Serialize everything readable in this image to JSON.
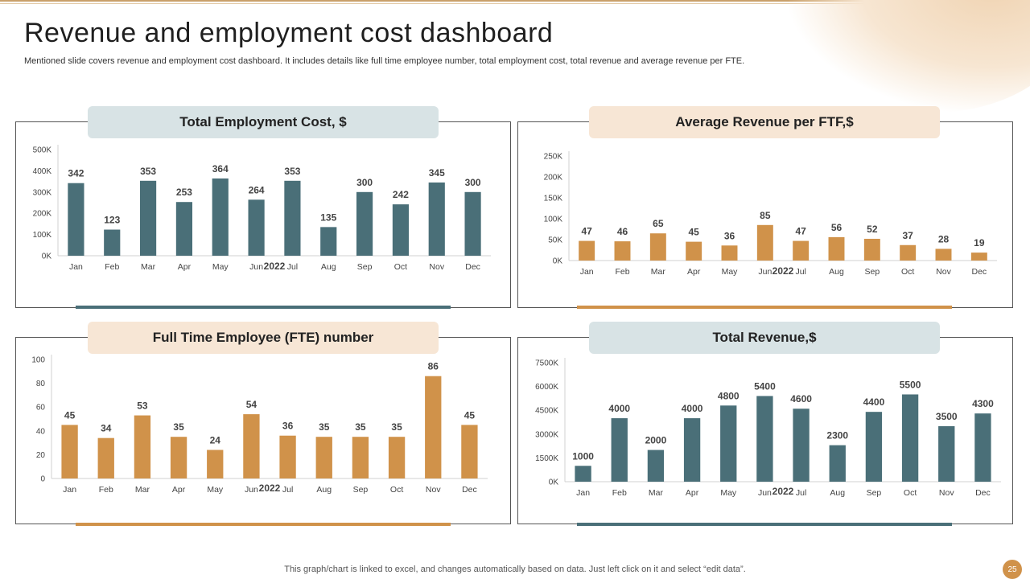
{
  "page": {
    "title": "Revenue and employment cost dashboard",
    "subtitle": "Mentioned slide covers revenue and employment cost dashboard. It includes details like full time employee number, total employment cost, total revenue and average revenue per FTE.",
    "footer": "This graph/chart is linked to excel,  and changes automatically based on data. Just left click on it and select “edit data”.",
    "page_number": "25"
  },
  "colors": {
    "teal": "#4a6f78",
    "orange": "#d0924a"
  },
  "panels": {
    "cost": {
      "header": "Total Employment  Cost, $"
    },
    "avg_revenue": {
      "header": "Average Revenue per FTF,$"
    },
    "fte": {
      "header": "Full Time Employee (FTE) number"
    },
    "revenue": {
      "header": "Total Revenue,$"
    }
  },
  "chart_data": [
    {
      "type": "bar",
      "title": "Total Employment  Cost, $",
      "xlabel": "2022",
      "categories": [
        "Jan",
        "Feb",
        "Mar",
        "Apr",
        "May",
        "Jun",
        "Jul",
        "Aug",
        "Sep",
        "Oct",
        "Nov",
        "Dec"
      ],
      "values": [
        342,
        123,
        353,
        253,
        364,
        264,
        353,
        135,
        300,
        242,
        345,
        300
      ],
      "yticks": [
        "0K",
        "100K",
        "200K",
        "300K",
        "400K",
        "500K"
      ],
      "ylim": [
        0,
        500
      ],
      "color": "#4a6f78"
    },
    {
      "type": "bar",
      "title": "Average Revenue per FTF,$",
      "xlabel": "2022",
      "categories": [
        "Jan",
        "Feb",
        "Mar",
        "Apr",
        "May",
        "Jun",
        "Jul",
        "Aug",
        "Sep",
        "Oct",
        "Nov",
        "Dec"
      ],
      "values": [
        47,
        46,
        65,
        45,
        36,
        85,
        47,
        56,
        52,
        37,
        28,
        19
      ],
      "yticks": [
        "0K",
        "50K",
        "100K",
        "150K",
        "200K",
        "250K"
      ],
      "ylim": [
        0,
        250
      ],
      "color": "#d0924a"
    },
    {
      "type": "bar",
      "title": "Full Time Employee (FTE) number",
      "xlabel": "2022",
      "categories": [
        "Jan",
        "Feb",
        "Mar",
        "Apr",
        "May",
        "Jun",
        "Jul",
        "Aug",
        "Sep",
        "Oct",
        "Nov",
        "Dec"
      ],
      "values": [
        45,
        34,
        53,
        35,
        24,
        54,
        36,
        35,
        35,
        35,
        86,
        45
      ],
      "yticks": [
        "0",
        "20",
        "40",
        "60",
        "80",
        "100"
      ],
      "ylim": [
        0,
        100
      ],
      "color": "#d0924a"
    },
    {
      "type": "bar",
      "title": "Total Revenue,$",
      "xlabel": "2022",
      "categories": [
        "Jan",
        "Feb",
        "Mar",
        "Apr",
        "May",
        "Jun",
        "Jul",
        "Aug",
        "Sep",
        "Oct",
        "Nov",
        "Dec"
      ],
      "values": [
        1000,
        4000,
        2000,
        4000,
        4800,
        5400,
        4600,
        2300,
        4400,
        5500,
        3500,
        4300
      ],
      "yticks": [
        "0K",
        "1500K",
        "3000K",
        "4500K",
        "6000K",
        "7500K"
      ],
      "ylim": [
        0,
        7500
      ],
      "color": "#4a6f78"
    }
  ]
}
